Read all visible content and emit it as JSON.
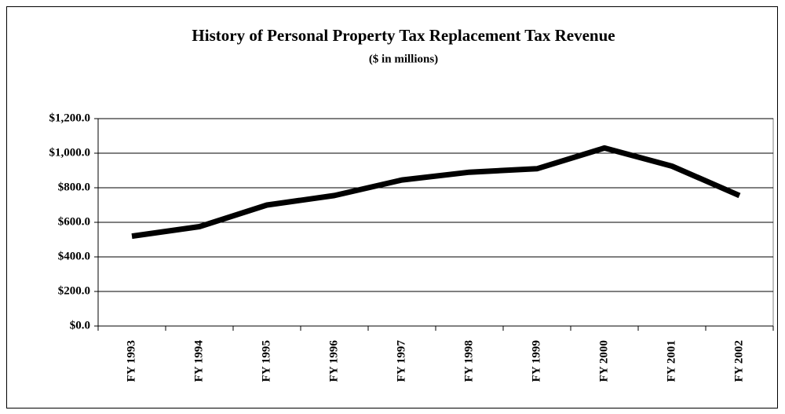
{
  "chart_data": {
    "type": "line",
    "title": "History of Personal Property Tax Replacement Tax Revenue",
    "subtitle": "($ in millions)",
    "categories": [
      "FY 1993",
      "FY 1994",
      "FY 1995",
      "FY 1996",
      "FY 1997",
      "FY 1998",
      "FY 1999",
      "FY 2000",
      "FY 2001",
      "FY 2002"
    ],
    "values": [
      520,
      575,
      700,
      755,
      845,
      890,
      910,
      1030,
      925,
      755
    ],
    "color": "#000000",
    "ylim": [
      0,
      1200
    ],
    "yticks": [
      {
        "value": 0,
        "label": "$0.0"
      },
      {
        "value": 200,
        "label": "$200.0"
      },
      {
        "value": 400,
        "label": "$400.0"
      },
      {
        "value": 600,
        "label": "$600.0"
      },
      {
        "value": 800,
        "label": "$800.0"
      },
      {
        "value": 1000,
        "label": "$1,000.0"
      },
      {
        "value": 1200,
        "label": "$1,200.0"
      }
    ],
    "grid": true
  }
}
